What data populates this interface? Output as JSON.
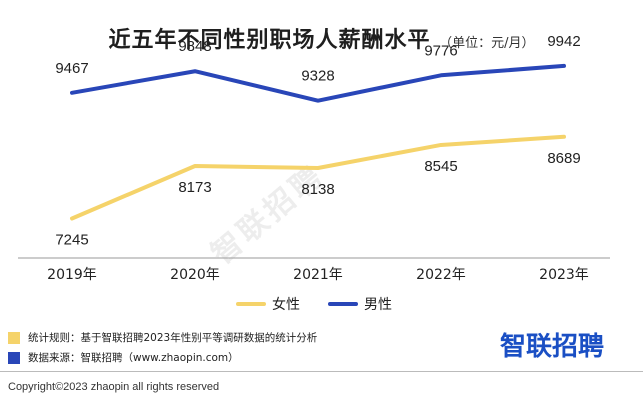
{
  "header": {
    "title": "近五年不同性别职场人薪酬水平",
    "unit": "（单位：元/月）"
  },
  "chart_data": {
    "type": "line",
    "categories": [
      "2019年",
      "2020年",
      "2021年",
      "2022年",
      "2023年"
    ],
    "series": [
      {
        "name": "女性",
        "values": [
          7245,
          8173,
          8138,
          8545,
          8689
        ],
        "color": "#f5d36a"
      },
      {
        "name": "男性",
        "values": [
          9467,
          9848,
          9328,
          9776,
          9942
        ],
        "color": "#2946b8"
      }
    ],
    "title": "近五年不同性别职场人薪酬水平",
    "xlabel": "",
    "ylabel": "",
    "ylim": [
      6600,
      10400
    ],
    "grid": false,
    "legend_position": "bottom-center"
  },
  "notes": {
    "rule_label": "统计规则：基于智联招聘2023年性别平等调研数据的统计分析",
    "source_label": "数据来源：智联招聘（www.zhaopin.com）",
    "rule_color": "#f5d36a",
    "source_color": "#2946b8"
  },
  "brand": {
    "logo_text": "智联招聘",
    "color": "#1a4fc4"
  },
  "watermark": "智联招聘",
  "copyright": "Copyright©2023 zhaopin all rights reserved"
}
